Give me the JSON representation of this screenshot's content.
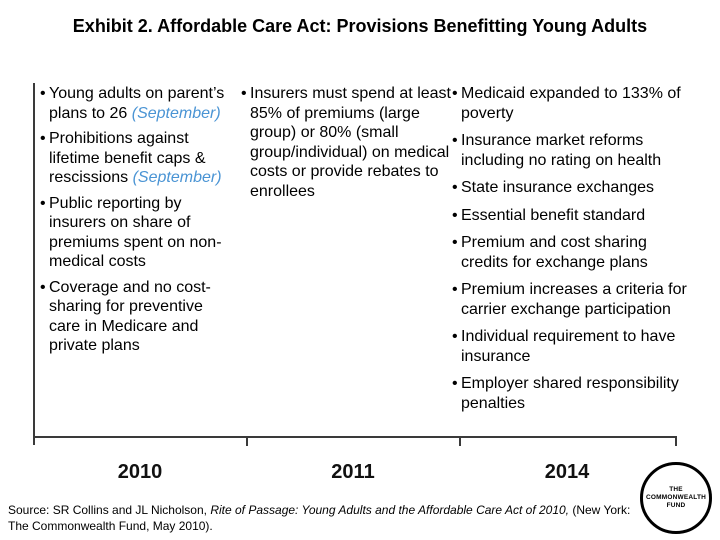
{
  "slide": {
    "title": "Exhibit 2. Affordable Care Act: Provisions Benefitting Young Adults"
  },
  "colors": {
    "accent_blue": "#4A94D4",
    "axis_gray": "#3a3a3a"
  },
  "columns": {
    "col2010": {
      "items": [
        {
          "text": "Young adults on parent’s plans to 26",
          "highlight": "(September)"
        },
        {
          "text": "Prohibitions against lifetime benefit caps & rescissions",
          "highlight": "(September)"
        },
        {
          "text": "Public reporting by insurers on share of premiums spent on non-medical costs"
        },
        {
          "text": "Coverage and no cost-sharing for preventive care in Medicare and private plans"
        }
      ]
    },
    "col2011": {
      "items": [
        {
          "text": "Insurers must spend at least 85% of premiums (large group) or 80% (small group/individual) on medical costs or provide rebates to enrollees"
        }
      ]
    },
    "col2014": {
      "items": [
        {
          "text": "Medicaid expanded to 133% of poverty"
        },
        {
          "text": "Insurance market reforms including no rating on health"
        },
        {
          "text": "State insurance exchanges"
        },
        {
          "text": "Essential benefit standard"
        },
        {
          "text": "Premium and cost sharing credits for exchange plans"
        },
        {
          "text": "Premium increases a criteria for carrier exchange participation"
        },
        {
          "text": "Individual requirement to have insurance"
        },
        {
          "text": "Employer shared responsibility penalties"
        }
      ]
    }
  },
  "bullet_char": "•",
  "timeline": {
    "years": [
      "2010",
      "2011",
      "2014"
    ]
  },
  "source": {
    "prefix": "Source: SR Collins and JL Nicholson, ",
    "italic": "Rite of Passage: Young Adults and the Affordable Care Act of 2010,",
    "suffix": " (New York: The Commonwealth Fund, May 2010)."
  },
  "logo": {
    "line1": "THE",
    "line2": "COMMONWEALTH",
    "line3": "FUND"
  }
}
